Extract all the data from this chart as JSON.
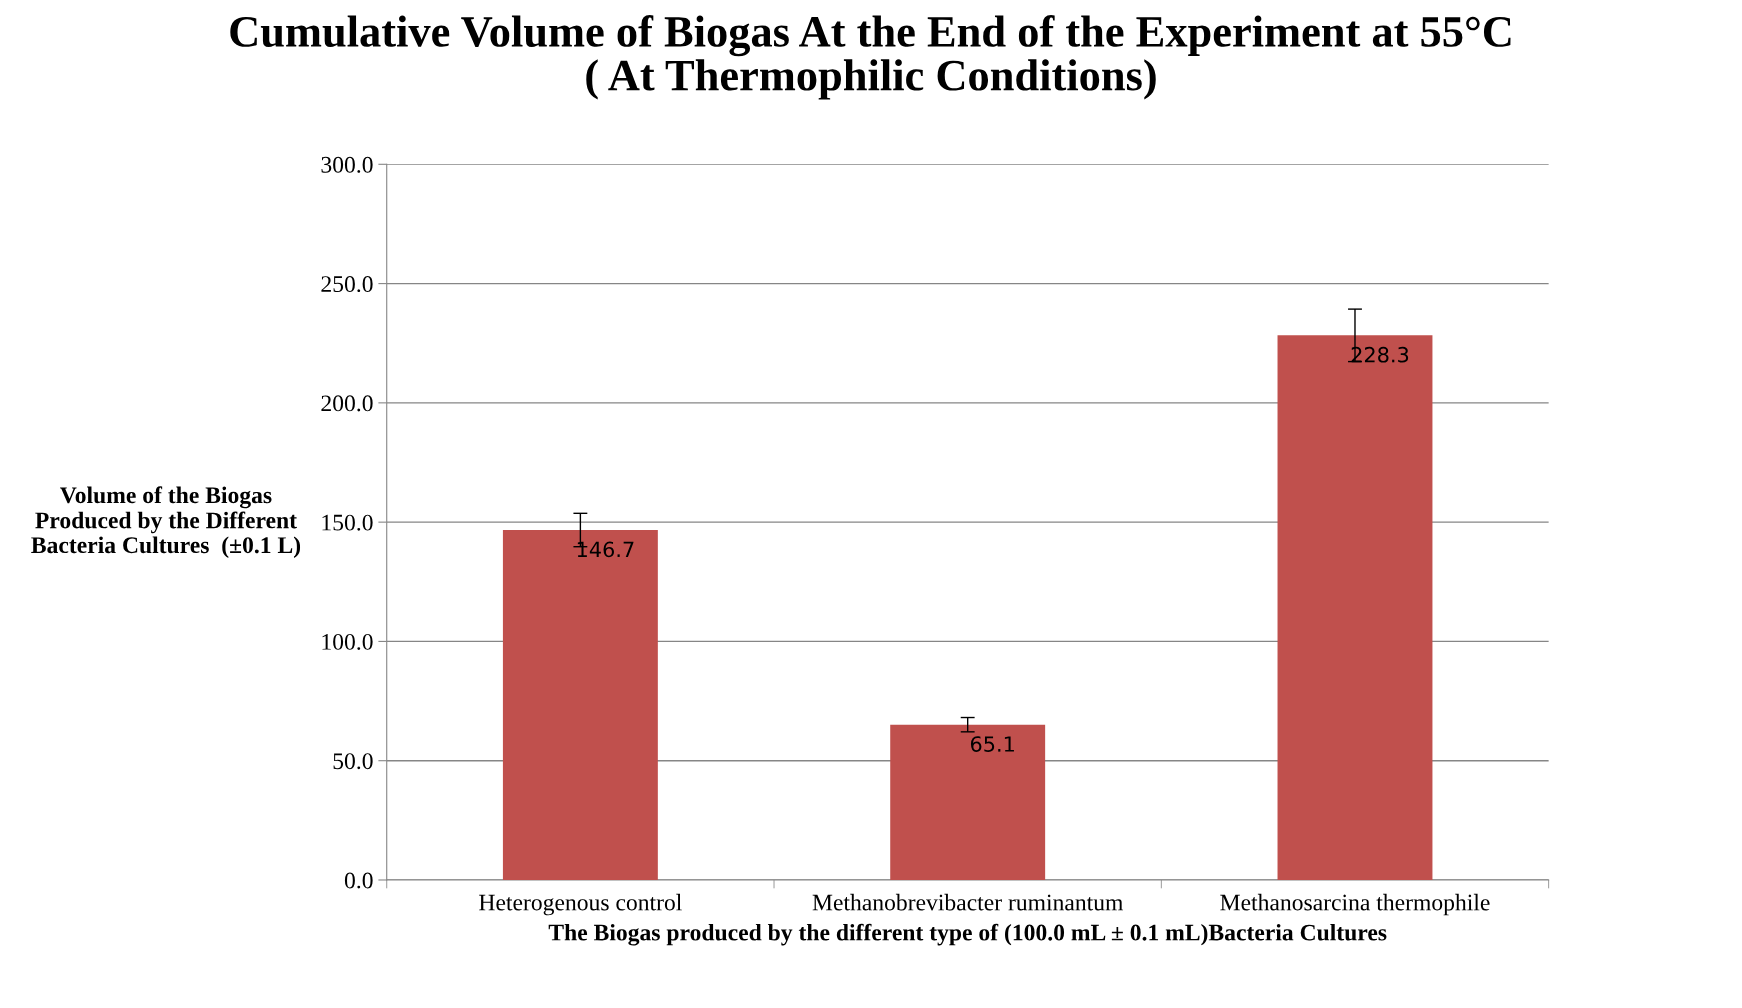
{
  "chart_data": {
    "type": "bar",
    "title": "Cumulative Volume of Biogas At the End of the Experiment at 55°C\n( At Thermophilic Conditions)",
    "xlabel": "The Biogas produced by the different type of (100.0 mL ± 0.1 mL)Bacteria Cultures",
    "ylabel": "Volume of the Biogas\nProduced by the Different\nBacteria Cultures  (±0.1 L)",
    "categories": [
      "Heterogenous control",
      "Methanobrevibacter ruminantum",
      "Methanosarcina thermophile"
    ],
    "values": [
      146.7,
      65.1,
      228.3
    ],
    "errors": [
      7,
      3,
      11
    ],
    "color": "#c0504d",
    "data_labels": true,
    "ylim": [
      0,
      300
    ],
    "yticks": [
      {
        "value": 0,
        "label": "0.0"
      },
      {
        "value": 50,
        "label": "50.0"
      },
      {
        "value": 100,
        "label": "100.0"
      },
      {
        "value": 150,
        "label": "150.0"
      },
      {
        "value": 200,
        "label": "200.0"
      },
      {
        "value": 250,
        "label": "250.0"
      },
      {
        "value": 300,
        "label": "300.0"
      }
    ],
    "grid": "y",
    "legend": false
  }
}
